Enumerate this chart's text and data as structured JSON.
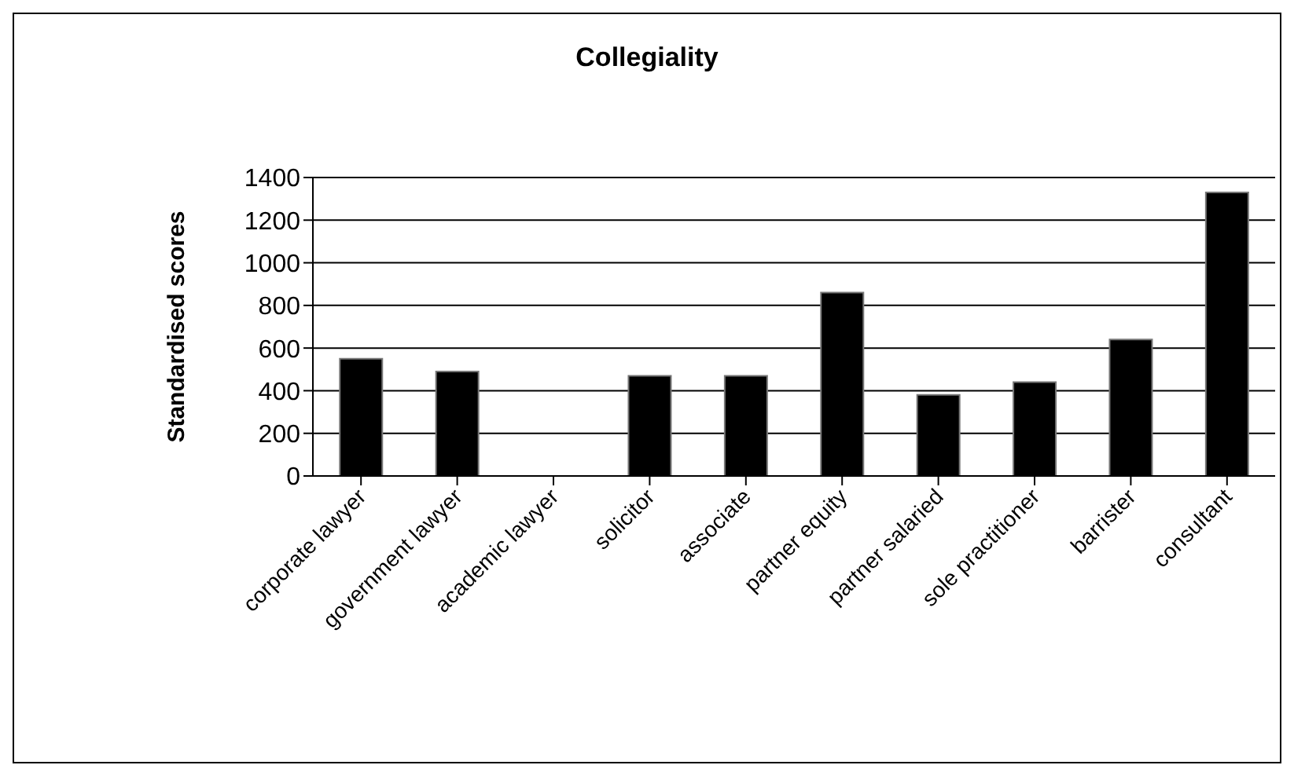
{
  "chart_data": {
    "type": "bar",
    "title": "Collegiality",
    "ylabel": "Standardised scores",
    "categories": [
      "corporate lawyer",
      "government lawyer",
      "academic lawyer",
      "solicitor",
      "associate",
      "partner equity",
      "partner salaried",
      "sole practitioner",
      "barrister",
      "consultant"
    ],
    "values": [
      550,
      490,
      0,
      470,
      470,
      860,
      380,
      440,
      640,
      1330
    ],
    "color": "#000000",
    "ylim": [
      0,
      1400
    ],
    "yticks": [
      0,
      200,
      400,
      600,
      800,
      1000,
      1200,
      1400
    ],
    "grid": "y",
    "legend": false
  }
}
